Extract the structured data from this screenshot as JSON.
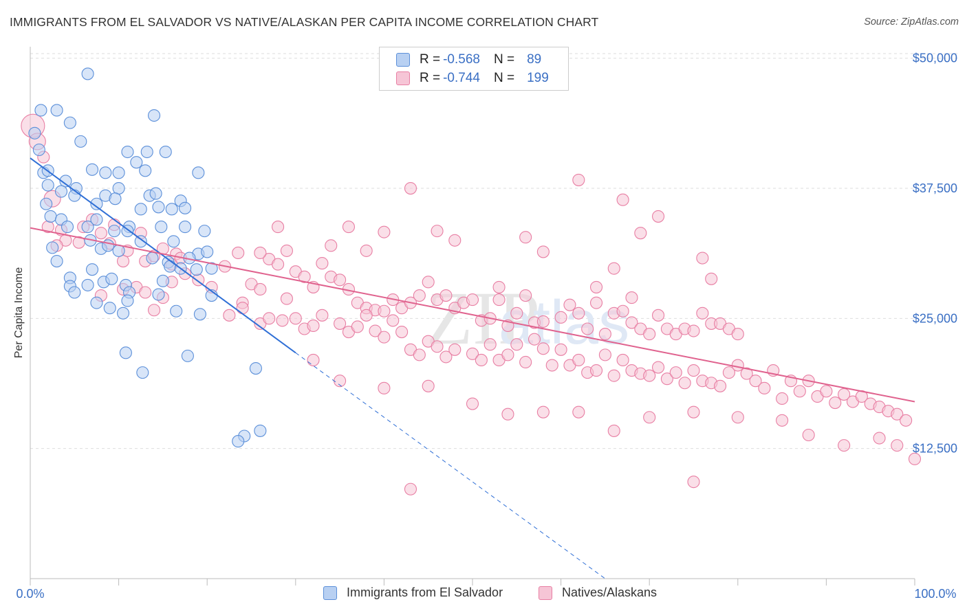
{
  "title": "IMMIGRANTS FROM EL SALVADOR VS NATIVE/ALASKAN PER CAPITA INCOME CORRELATION CHART",
  "source": "Source: ZipAtlas.com",
  "colors": {
    "blue": "#5b8fd9",
    "blue_fill": "#b8d0f2",
    "blue_line": "#2f6fd6",
    "pink": "#e87ea3",
    "pink_fill": "#f6c5d6",
    "pink_line": "#e0628e",
    "axis_text": "#3a6fc4",
    "grid": "#dddddd"
  },
  "legend": {
    "series": [
      {
        "r_label": "R =",
        "r_value": "-0.568",
        "n_label": "N =",
        "n_value": "89"
      },
      {
        "r_label": "R =",
        "r_value": "-0.744",
        "n_label": "N =",
        "n_value": "199"
      }
    ]
  },
  "bottom_legend": [
    "Immigrants from El Salvador",
    "Natives/Alaskans"
  ],
  "chart_data": {
    "type": "scatter",
    "title": "IMMIGRANTS FROM EL SALVADOR VS NATIVE/ALASKAN PER CAPITA INCOME CORRELATION CHART",
    "xlabel": "",
    "ylabel": "Per Capita Income",
    "x_tick_labels": [
      "0.0%",
      "100.0%"
    ],
    "y_tick_labels": [
      "$12,500",
      "$25,000",
      "$37,500",
      "$50,000"
    ],
    "y_ticks": [
      12500,
      25000,
      37500,
      50000
    ],
    "xlim": [
      0,
      100
    ],
    "ylim": [
      0,
      51500
    ],
    "grid": true,
    "legend_position": "top-center",
    "series": [
      {
        "name": "Immigrants from El Salvador",
        "r": -0.568,
        "n": 89,
        "trend": {
          "x0": 0,
          "y0": 40400,
          "x1": 30,
          "y1": 21700,
          "dashed_to_x": 65,
          "dashed_to_y": 0
        },
        "points": [
          [
            1.2,
            45000
          ],
          [
            3.0,
            45000
          ],
          [
            6.5,
            48500
          ],
          [
            14,
            44500
          ],
          [
            4.5,
            43800
          ],
          [
            0.5,
            42800
          ],
          [
            5.7,
            42000
          ],
          [
            1.0,
            41200
          ],
          [
            1.5,
            39000
          ],
          [
            2.0,
            39200
          ],
          [
            4.0,
            38200
          ],
          [
            7.0,
            39300
          ],
          [
            8.5,
            39000
          ],
          [
            10,
            39000
          ],
          [
            12,
            40000
          ],
          [
            13,
            39200
          ],
          [
            11,
            41000
          ],
          [
            13.2,
            41000
          ],
          [
            15.3,
            41000
          ],
          [
            19,
            39000
          ],
          [
            2.0,
            37800
          ],
          [
            3.5,
            37200
          ],
          [
            5.2,
            37500
          ],
          [
            8.5,
            36800
          ],
          [
            10,
            37500
          ],
          [
            9.6,
            36500
          ],
          [
            13.5,
            36800
          ],
          [
            14.2,
            37000
          ],
          [
            17,
            36300
          ],
          [
            1.8,
            36000
          ],
          [
            5.0,
            36800
          ],
          [
            7.5,
            36000
          ],
          [
            12.5,
            35500
          ],
          [
            14.5,
            35700
          ],
          [
            16,
            35500
          ],
          [
            17.5,
            35600
          ],
          [
            2.3,
            34800
          ],
          [
            3.5,
            34500
          ],
          [
            4.2,
            33800
          ],
          [
            6.5,
            33800
          ],
          [
            7.5,
            34500
          ],
          [
            11.2,
            33800
          ],
          [
            14.8,
            33800
          ],
          [
            17.5,
            33800
          ],
          [
            9.5,
            33400
          ],
          [
            11,
            33400
          ],
          [
            19.7,
            33400
          ],
          [
            12.5,
            32400
          ],
          [
            8,
            31700
          ],
          [
            10,
            31500
          ],
          [
            19,
            31200
          ],
          [
            20,
            31400
          ],
          [
            18,
            30800
          ],
          [
            15.6,
            30400
          ],
          [
            15.8,
            30000
          ],
          [
            17,
            29800
          ],
          [
            18.8,
            29700
          ],
          [
            20.5,
            29800
          ],
          [
            7,
            29700
          ],
          [
            4.5,
            28900
          ],
          [
            8.3,
            28500
          ],
          [
            9.2,
            28800
          ],
          [
            4.5,
            28100
          ],
          [
            6.5,
            28200
          ],
          [
            10.8,
            28200
          ],
          [
            11.2,
            27500
          ],
          [
            5.0,
            27500
          ],
          [
            14.5,
            27300
          ],
          [
            20.5,
            27200
          ],
          [
            11,
            26700
          ],
          [
            7.5,
            26500
          ],
          [
            9.0,
            26000
          ],
          [
            10.5,
            25500
          ],
          [
            16.5,
            25700
          ],
          [
            19.2,
            25400
          ],
          [
            10.8,
            21700
          ],
          [
            17.8,
            21400
          ],
          [
            12.7,
            19800
          ],
          [
            25.5,
            20200
          ],
          [
            24.2,
            13700
          ],
          [
            26,
            14200
          ],
          [
            23.5,
            13200
          ],
          [
            2.5,
            31800
          ],
          [
            6.8,
            32500
          ],
          [
            3.0,
            30500
          ],
          [
            13.8,
            30800
          ],
          [
            15,
            28600
          ],
          [
            16.2,
            32400
          ],
          [
            8.8,
            32000
          ]
        ]
      },
      {
        "name": "Natives/Alaskans",
        "r": -0.744,
        "n": 199,
        "trend": {
          "x0": 0,
          "y0": 33700,
          "x1": 100,
          "y1": 17000
        },
        "points": [
          [
            0.3,
            43500
          ],
          [
            0.8,
            42000
          ],
          [
            1.5,
            40500
          ],
          [
            2.5,
            36500
          ],
          [
            2.0,
            33800
          ],
          [
            3.5,
            33500
          ],
          [
            4,
            32500
          ],
          [
            3,
            32000
          ],
          [
            5.5,
            32300
          ],
          [
            6,
            33800
          ],
          [
            7,
            34500
          ],
          [
            8,
            33200
          ],
          [
            9,
            32200
          ],
          [
            9.5,
            34000
          ],
          [
            10.5,
            30500
          ],
          [
            11,
            31500
          ],
          [
            12.5,
            33200
          ],
          [
            13,
            30500
          ],
          [
            14,
            31000
          ],
          [
            15,
            31700
          ],
          [
            16,
            30200
          ],
          [
            16.5,
            31200
          ],
          [
            17,
            30800
          ],
          [
            8,
            27200
          ],
          [
            10.5,
            27800
          ],
          [
            12,
            28000
          ],
          [
            13,
            27500
          ],
          [
            14,
            25800
          ],
          [
            15,
            27000
          ],
          [
            16,
            28500
          ],
          [
            17.5,
            29300
          ],
          [
            19,
            28700
          ],
          [
            20.5,
            28000
          ],
          [
            22,
            30000
          ],
          [
            23.5,
            31300
          ],
          [
            24,
            26500
          ],
          [
            25,
            28300
          ],
          [
            26,
            27800
          ],
          [
            27,
            30700
          ],
          [
            28,
            30200
          ],
          [
            29,
            31500
          ],
          [
            30,
            29500
          ],
          [
            31,
            29000
          ],
          [
            32,
            28000
          ],
          [
            33,
            30300
          ],
          [
            34,
            29000
          ],
          [
            35,
            28700
          ],
          [
            36,
            27800
          ],
          [
            37,
            26500
          ],
          [
            38,
            26000
          ],
          [
            39,
            25800
          ],
          [
            40,
            25700
          ],
          [
            41,
            26800
          ],
          [
            42,
            26000
          ],
          [
            43,
            26500
          ],
          [
            44,
            27200
          ],
          [
            45,
            28500
          ],
          [
            46,
            26800
          ],
          [
            47,
            27200
          ],
          [
            48,
            26000
          ],
          [
            49,
            26500
          ],
          [
            50,
            26800
          ],
          [
            51,
            24800
          ],
          [
            52,
            25000
          ],
          [
            53,
            26800
          ],
          [
            54,
            24300
          ],
          [
            55,
            25500
          ],
          [
            56,
            27200
          ],
          [
            57,
            24600
          ],
          [
            58,
            24700
          ],
          [
            60,
            25100
          ],
          [
            61,
            26300
          ],
          [
            62,
            25500
          ],
          [
            63,
            24000
          ],
          [
            64,
            26500
          ],
          [
            65,
            23500
          ],
          [
            66,
            25500
          ],
          [
            67,
            25700
          ],
          [
            68,
            24600
          ],
          [
            69,
            24000
          ],
          [
            70,
            23500
          ],
          [
            71,
            25300
          ],
          [
            72,
            24000
          ],
          [
            73,
            23500
          ],
          [
            74,
            24000
          ],
          [
            75,
            23800
          ],
          [
            76,
            25500
          ],
          [
            77,
            24500
          ],
          [
            78,
            24500
          ],
          [
            79,
            24000
          ],
          [
            80,
            23500
          ],
          [
            22.5,
            25300
          ],
          [
            24,
            26000
          ],
          [
            26,
            24500
          ],
          [
            27,
            25000
          ],
          [
            28.5,
            24800
          ],
          [
            29,
            26900
          ],
          [
            31,
            24000
          ],
          [
            32,
            24300
          ],
          [
            33,
            25300
          ],
          [
            35,
            24500
          ],
          [
            36,
            23700
          ],
          [
            37,
            24200
          ],
          [
            38,
            25300
          ],
          [
            39,
            23800
          ],
          [
            40,
            23200
          ],
          [
            41,
            24800
          ],
          [
            42,
            23700
          ],
          [
            43,
            22000
          ],
          [
            44,
            21500
          ],
          [
            45,
            22800
          ],
          [
            46,
            22300
          ],
          [
            47,
            21300
          ],
          [
            48,
            22000
          ],
          [
            50,
            21600
          ],
          [
            51,
            21000
          ],
          [
            52,
            22500
          ],
          [
            53,
            21000
          ],
          [
            54,
            21500
          ],
          [
            55,
            22500
          ],
          [
            56,
            20800
          ],
          [
            57,
            23000
          ],
          [
            58,
            22100
          ],
          [
            59,
            20500
          ],
          [
            60,
            22000
          ],
          [
            61,
            20500
          ],
          [
            62,
            21000
          ],
          [
            63,
            19800
          ],
          [
            64,
            20000
          ],
          [
            65,
            21500
          ],
          [
            66,
            19500
          ],
          [
            67,
            21000
          ],
          [
            68,
            20000
          ],
          [
            69,
            19700
          ],
          [
            70,
            19500
          ],
          [
            71,
            20300
          ],
          [
            72,
            19200
          ],
          [
            73,
            19800
          ],
          [
            74,
            18800
          ],
          [
            75,
            20000
          ],
          [
            76,
            19000
          ],
          [
            77,
            18800
          ],
          [
            78,
            18500
          ],
          [
            79,
            19800
          ],
          [
            80,
            20500
          ],
          [
            81,
            19700
          ],
          [
            82,
            19000
          ],
          [
            83,
            18300
          ],
          [
            84,
            20000
          ],
          [
            85,
            17300
          ],
          [
            86,
            19000
          ],
          [
            87,
            18000
          ],
          [
            88,
            19000
          ],
          [
            89,
            17500
          ],
          [
            90,
            18000
          ],
          [
            91,
            16900
          ],
          [
            92,
            17700
          ],
          [
            93,
            17000
          ],
          [
            94,
            17500
          ],
          [
            95,
            16800
          ],
          [
            96,
            16500
          ],
          [
            97,
            16100
          ],
          [
            98,
            15800
          ],
          [
            99,
            15200
          ],
          [
            100,
            11500
          ],
          [
            96,
            13500
          ],
          [
            98,
            12800
          ],
          [
            92,
            12800
          ],
          [
            88,
            13800
          ],
          [
            85,
            15200
          ],
          [
            80,
            15500
          ],
          [
            75,
            16000
          ],
          [
            70,
            15500
          ],
          [
            66,
            14200
          ],
          [
            62,
            16000
          ],
          [
            58,
            16000
          ],
          [
            54,
            15800
          ],
          [
            50,
            16800
          ],
          [
            45,
            18500
          ],
          [
            40,
            18300
          ],
          [
            35,
            19000
          ],
          [
            32,
            21000
          ],
          [
            30,
            25000
          ],
          [
            28,
            33800
          ],
          [
            26,
            31300
          ],
          [
            43,
            37500
          ],
          [
            56,
            32800
          ],
          [
            62,
            38300
          ],
          [
            67,
            36400
          ],
          [
            69,
            33200
          ],
          [
            71,
            34800
          ],
          [
            76,
            30800
          ],
          [
            77,
            28800
          ],
          [
            53,
            28000
          ],
          [
            43,
            8600
          ],
          [
            75,
            9300
          ],
          [
            46,
            33400
          ],
          [
            48,
            32500
          ],
          [
            40,
            33300
          ],
          [
            36,
            33800
          ],
          [
            38,
            31500
          ],
          [
            34,
            32000
          ],
          [
            58,
            31400
          ],
          [
            64,
            28000
          ],
          [
            66,
            29800
          ],
          [
            68,
            27000
          ]
        ]
      }
    ]
  }
}
